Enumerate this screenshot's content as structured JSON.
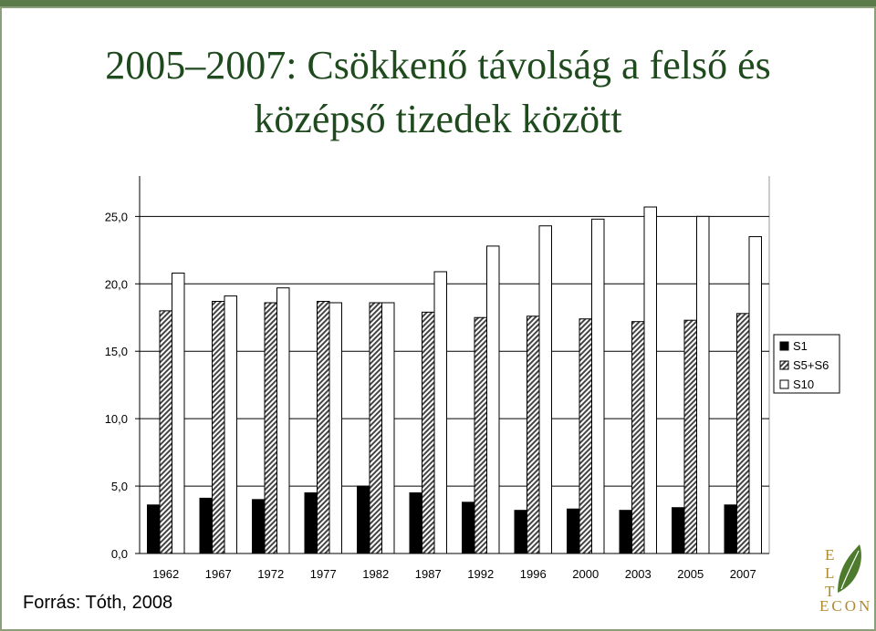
{
  "chart_data": {
    "type": "bar",
    "title": [
      "2005–2007: Csökkenő távolság a felső és",
      "középső tizedek között"
    ],
    "categories": [
      "1962",
      "1967",
      "1972",
      "1977",
      "1982",
      "1987",
      "1992",
      "1996",
      "2000",
      "2003",
      "2005",
      "2007"
    ],
    "series": [
      {
        "name": "S1",
        "color": "#000000",
        "values": [
          3.6,
          4.1,
          4.0,
          4.5,
          5.0,
          4.5,
          3.8,
          3.2,
          3.3,
          3.2,
          3.4,
          3.6
        ]
      },
      {
        "name": "S5+S6",
        "color": "#444444",
        "hatch": true,
        "values": [
          18.0,
          18.7,
          18.6,
          18.7,
          18.6,
          17.9,
          17.5,
          17.6,
          17.4,
          17.2,
          17.3,
          17.8
        ]
      },
      {
        "name": "S10",
        "color": "#ffffff",
        "values": [
          20.8,
          19.1,
          19.7,
          18.6,
          18.6,
          20.9,
          22.8,
          24.3,
          24.8,
          25.7,
          25.0,
          23.5
        ]
      }
    ],
    "ylim": [
      0,
      28
    ],
    "yticks": [
      {
        "value": 0,
        "label": "0,0"
      },
      {
        "value": 5,
        "label": "5,0"
      },
      {
        "value": 10,
        "label": "10,0"
      },
      {
        "value": 15,
        "label": "15,0"
      },
      {
        "value": 20,
        "label": "20,0"
      },
      {
        "value": 25,
        "label": "25,0"
      }
    ],
    "grid": true,
    "legend": "right",
    "source": "Forrás: Tóth, 2008"
  },
  "logo": {
    "letters": [
      "E",
      "L",
      "T"
    ],
    "word": "ECON"
  }
}
